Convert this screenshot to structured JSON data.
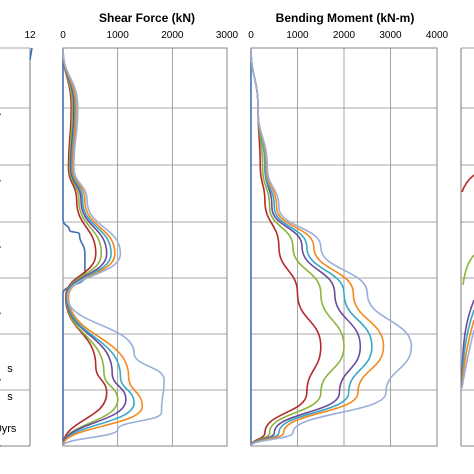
{
  "colors": {
    "grid": "#8c8c8c",
    "border": "#7a7a7a",
    "series": [
      "#3f6fb5",
      "#b52a2a",
      "#8cb43c",
      "#6a4c9c",
      "#3aa8c4",
      "#f28a1e",
      "#9bb0d8"
    ]
  },
  "chart_data": [
    {
      "type": "line",
      "title": "",
      "x_ticks": [
        "12"
      ],
      "series": [
        {
          "name": "",
          "points": [
            [
              12.8,
              0
            ],
            [
              12.5,
              0.06
            ],
            [
              12.2,
              0.13
            ],
            [
              12.0,
              0.18
            ]
          ]
        },
        {
          "name": "",
          "points": [
            [
              0,
              1.0
            ],
            [
              0.4,
              1.0
            ]
          ]
        },
        {
          "name": "",
          "points": [
            [
              0,
              2.0
            ],
            [
              0.35,
              2.0
            ]
          ]
        },
        {
          "name": "",
          "points": [
            [
              0,
              3.0
            ],
            [
              0.4,
              3.0
            ]
          ]
        },
        {
          "name": "",
          "points": [
            [
              0,
              4.0
            ],
            [
              0.35,
              4.0
            ]
          ]
        },
        {
          "name": "",
          "points": [
            [
              0,
              5.0
            ],
            [
              0.4,
              5.0
            ]
          ]
        },
        {
          "name": "",
          "points": [
            [
              0,
              6.0
            ],
            [
              0.3,
              6.0
            ]
          ]
        }
      ]
    },
    {
      "type": "line",
      "title": "Shear Force (kN)",
      "xlim": [
        0,
        3000
      ],
      "x_ticks": [
        "0",
        "1000",
        "2000",
        "3000"
      ],
      "ylim": [
        0,
        6
      ],
      "series": [
        {
          "name": "",
          "points": [
            [
              0,
              0
            ],
            [
              0,
              2.6
            ],
            [
              120,
              2.75
            ],
            [
              300,
              2.8
            ],
            [
              400,
              3.1
            ],
            [
              400,
              3.45
            ],
            [
              0,
              3.7
            ],
            [
              0,
              6.0
            ]
          ]
        },
        {
          "name": "",
          "points": [
            [
              0,
              0
            ],
            [
              150,
              0.9
            ],
            [
              100,
              1.8
            ],
            [
              250,
              2.3
            ],
            [
              600,
              3.1
            ],
            [
              50,
              3.75
            ],
            [
              600,
              4.8
            ],
            [
              800,
              5.2
            ],
            [
              0,
              6.0
            ]
          ]
        },
        {
          "name": "",
          "points": [
            [
              0,
              0
            ],
            [
              170,
              0.9
            ],
            [
              120,
              1.8
            ],
            [
              290,
              2.3
            ],
            [
              700,
              3.1
            ],
            [
              60,
              3.75
            ],
            [
              750,
              4.9
            ],
            [
              1000,
              5.3
            ],
            [
              0,
              6.0
            ]
          ]
        },
        {
          "name": "",
          "points": [
            [
              0,
              0
            ],
            [
              200,
              0.9
            ],
            [
              140,
              1.8
            ],
            [
              330,
              2.3
            ],
            [
              800,
              3.1
            ],
            [
              70,
              3.75
            ],
            [
              900,
              4.9
            ],
            [
              1150,
              5.3
            ],
            [
              0,
              6.0
            ]
          ]
        },
        {
          "name": "",
          "points": [
            [
              0,
              0
            ],
            [
              220,
              0.9
            ],
            [
              160,
              1.8
            ],
            [
              360,
              2.3
            ],
            [
              880,
              3.1
            ],
            [
              80,
              3.75
            ],
            [
              1050,
              4.95
            ],
            [
              1300,
              5.35
            ],
            [
              0,
              6.0
            ]
          ]
        },
        {
          "name": "",
          "points": [
            [
              0,
              0
            ],
            [
              240,
              0.9
            ],
            [
              180,
              1.8
            ],
            [
              400,
              2.3
            ],
            [
              950,
              3.1
            ],
            [
              100,
              3.75
            ],
            [
              1200,
              4.95
            ],
            [
              1450,
              5.4
            ],
            [
              0,
              6.0
            ]
          ]
        },
        {
          "name": "",
          "points": [
            [
              0,
              0
            ],
            [
              270,
              0.9
            ],
            [
              200,
              1.8
            ],
            [
              440,
              2.3
            ],
            [
              1050,
              3.1
            ],
            [
              80,
              3.75
            ],
            [
              1300,
              4.6
            ],
            [
              1850,
              5.0
            ],
            [
              1800,
              5.5
            ],
            [
              1000,
              5.75
            ],
            [
              0,
              6.0
            ]
          ]
        }
      ]
    },
    {
      "type": "line",
      "title": "Bending Moment (kN-m)",
      "xlim": [
        0,
        4000
      ],
      "x_ticks": [
        "0",
        "1000",
        "2000",
        "3000",
        "4000"
      ],
      "ylim": [
        0,
        6
      ],
      "series": [
        {
          "name": "",
          "points": [
            [
              0,
              0
            ],
            [
              0,
              6.0
            ]
          ]
        },
        {
          "name": "",
          "points": [
            [
              0,
              0
            ],
            [
              150,
              0.9
            ],
            [
              200,
              1.8
            ],
            [
              300,
              2.3
            ],
            [
              600,
              3.0
            ],
            [
              1000,
              3.7
            ],
            [
              1500,
              4.5
            ],
            [
              1200,
              5.2
            ],
            [
              300,
              5.8
            ],
            [
              0,
              6.0
            ]
          ]
        },
        {
          "name": "",
          "points": [
            [
              0,
              0
            ],
            [
              150,
              0.9
            ],
            [
              250,
              1.8
            ],
            [
              400,
              2.4
            ],
            [
              900,
              3.0
            ],
            [
              1500,
              3.7
            ],
            [
              2000,
              4.5
            ],
            [
              1500,
              5.2
            ],
            [
              400,
              5.8
            ],
            [
              0,
              6.0
            ]
          ]
        },
        {
          "name": "",
          "points": [
            [
              0,
              0
            ],
            [
              150,
              0.9
            ],
            [
              300,
              1.8
            ],
            [
              450,
              2.4
            ],
            [
              1100,
              3.0
            ],
            [
              1800,
              3.7
            ],
            [
              2350,
              4.5
            ],
            [
              1900,
              5.2
            ],
            [
              500,
              5.8
            ],
            [
              0,
              6.0
            ]
          ]
        },
        {
          "name": "",
          "points": [
            [
              0,
              0
            ],
            [
              150,
              0.9
            ],
            [
              300,
              1.8
            ],
            [
              500,
              2.4
            ],
            [
              1200,
              3.0
            ],
            [
              2000,
              3.7
            ],
            [
              2600,
              4.5
            ],
            [
              2100,
              5.2
            ],
            [
              600,
              5.8
            ],
            [
              0,
              6.0
            ]
          ]
        },
        {
          "name": "",
          "points": [
            [
              0,
              0
            ],
            [
              150,
              0.9
            ],
            [
              330,
              1.8
            ],
            [
              550,
              2.4
            ],
            [
              1350,
              3.0
            ],
            [
              2200,
              3.7
            ],
            [
              2850,
              4.5
            ],
            [
              2300,
              5.2
            ],
            [
              700,
              5.8
            ],
            [
              0,
              6.0
            ]
          ]
        },
        {
          "name": "",
          "points": [
            [
              0,
              0
            ],
            [
              150,
              0.9
            ],
            [
              350,
              1.8
            ],
            [
              600,
              2.4
            ],
            [
              1500,
              3.0
            ],
            [
              2500,
              3.7
            ],
            [
              3450,
              4.5
            ],
            [
              2900,
              5.2
            ],
            [
              900,
              5.8
            ],
            [
              0,
              6.0
            ]
          ]
        }
      ]
    }
  ],
  "legend_fragments": [
    "s",
    "s",
    "0yrs"
  ]
}
